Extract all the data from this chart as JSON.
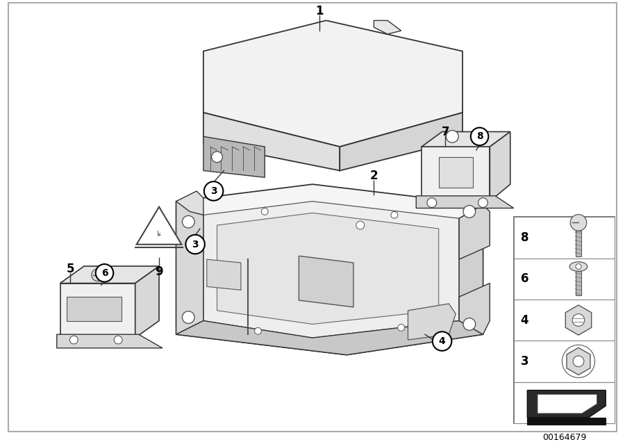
{
  "bg_color": "#ffffff",
  "diagram_id": "00164679",
  "line_color": "#333333",
  "light_gray": "#e8e8e8",
  "mid_gray": "#c8c8c8",
  "dark_gray": "#555555"
}
